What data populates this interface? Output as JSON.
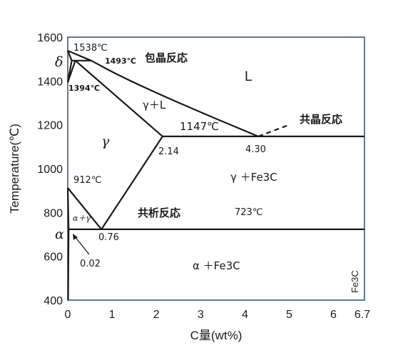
{
  "diagram": {
    "x_axis": {
      "title": "C量(wt%)",
      "min": 0,
      "max": 6.7,
      "ticks": [
        "0",
        "1",
        "2",
        "3",
        "4",
        "5",
        "6",
        "6.7"
      ]
    },
    "y_axis": {
      "title": "Temperature(℃)",
      "min": 400,
      "max": 1600,
      "ticks": [
        "400",
        "600",
        "800",
        "1000",
        "1200",
        "1400",
        "1600"
      ]
    },
    "labels": {
      "t1538": "1538℃",
      "t1493": "1493℃",
      "peritectic": "包晶反応",
      "t1394": "1394℃",
      "liquid": "L",
      "gamma_liquid": "γ＋L",
      "t1147": "1147℃",
      "eutectic": "共晶反応",
      "gamma": "γ",
      "c214": "2.14",
      "c430": "4.30",
      "t912": "912℃",
      "gamma_fe3c": "γ ＋Fe3C",
      "alpha_gamma": "α＋γ",
      "eutectoid": "共析反応",
      "t723": "723℃",
      "delta": "δ",
      "alpha": "α",
      "c076": "0.76",
      "c002": "0.02",
      "alpha_fe3c": "α ＋Fe3C",
      "fe3c": "Fe3C"
    },
    "phase_lines": [
      {
        "name": "liquidus-delta",
        "points": [
          [
            0,
            1538
          ],
          [
            0.53,
            1493
          ]
        ]
      },
      {
        "name": "liquidus-gamma",
        "points": [
          [
            0.53,
            1493
          ],
          [
            1.2,
            1420
          ],
          [
            2.5,
            1300
          ],
          [
            4.3,
            1147
          ]
        ]
      },
      {
        "name": "peritectic-line",
        "points": [
          [
            0.09,
            1493
          ],
          [
            0.53,
            1493
          ]
        ]
      },
      {
        "name": "delta-solidus",
        "points": [
          [
            0,
            1538
          ],
          [
            0.09,
            1493
          ]
        ]
      },
      {
        "name": "delta-gamma-upper",
        "points": [
          [
            0.09,
            1493
          ],
          [
            0,
            1394
          ]
        ]
      },
      {
        "name": "delta-gamma-lower",
        "points": [
          [
            0.17,
            1493
          ],
          [
            0,
            1394
          ]
        ]
      },
      {
        "name": "gamma-solidus",
        "points": [
          [
            0.17,
            1493
          ],
          [
            2.14,
            1147
          ]
        ]
      },
      {
        "name": "eutectic-line",
        "points": [
          [
            2.14,
            1147
          ],
          [
            6.7,
            1147
          ]
        ]
      },
      {
        "name": "acm-line",
        "points": [
          [
            2.14,
            1147
          ],
          [
            0.76,
            723
          ]
        ]
      },
      {
        "name": "a3-line",
        "points": [
          [
            0,
            912
          ],
          [
            0.76,
            723
          ]
        ]
      },
      {
        "name": "a3-inner",
        "points": [
          [
            0,
            912
          ],
          [
            0.02,
            723
          ]
        ]
      },
      {
        "name": "eutectoid-line",
        "points": [
          [
            0.02,
            723
          ],
          [
            6.7,
            723
          ]
        ]
      },
      {
        "name": "solvus-alpha",
        "points": [
          [
            0.02,
            723
          ],
          [
            0.008,
            400
          ]
        ]
      }
    ],
    "dashed_lines": [
      {
        "name": "metastable-extension",
        "points": [
          [
            4.3,
            1147
          ],
          [
            5.0,
            1200
          ]
        ]
      }
    ]
  }
}
